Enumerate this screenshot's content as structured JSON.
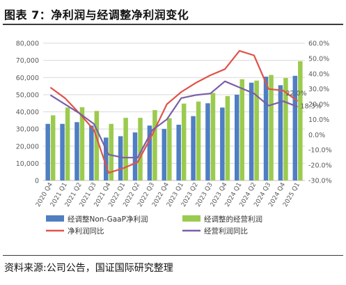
{
  "figure": {
    "title": "图表 7：净利润与经调整净利润变化",
    "source": "资料来源:公司公告，国证国际研究整理"
  },
  "colors": {
    "bar_nongaap": "#4f7ec2",
    "bar_adjop": "#9bcb4e",
    "line_net": "#e0524a",
    "line_op": "#7a5ea8",
    "grid": "#d9d9d9",
    "axis_text": "#595959"
  },
  "chart_data": {
    "type": "bar+line",
    "categories": [
      "2020 Q4",
      "2021 Q1",
      "2021 Q2",
      "2021 Q3",
      "2021 Q4",
      "2022 Q1",
      "2022 Q2",
      "2022 Q3",
      "2022 Q4",
      "2023 Q1",
      "2023 Q2",
      "2023 Q3",
      "2023 Q4",
      "2024 Q1",
      "2024 Q2",
      "2024 Q3",
      "2024 Q4",
      "2025 Q1"
    ],
    "left_axis": {
      "min": 0,
      "max": 80000,
      "ticks": [
        "0",
        "10,000",
        "20,000",
        "30,000",
        "40,000",
        "50,000",
        "60,000",
        "70,000",
        "80,000"
      ]
    },
    "right_axis": {
      "min": -30,
      "max": 60,
      "ticks": [
        "-30.0%",
        "-20.0%",
        "-10.0%",
        "0.0%",
        "10.0%",
        "20.0%",
        "30.0%",
        "40.0%",
        "50.0%",
        "60.0%"
      ]
    },
    "grid": true,
    "legend_position": "bottom",
    "series": [
      {
        "name": "经调整Non-GaaP净利润",
        "kind": "bar",
        "axis": "left",
        "values": [
          33000,
          33000,
          34000,
          32000,
          25000,
          25800,
          28000,
          32000,
          30000,
          32500,
          37500,
          45000,
          42500,
          50000,
          57000,
          60500,
          55500,
          61000
        ]
      },
      {
        "name": "经调整的经营利润",
        "kind": "bar",
        "axis": "left",
        "values": [
          38000,
          42500,
          42700,
          40500,
          33000,
          36500,
          36500,
          41000,
          36300,
          44800,
          46000,
          51000,
          49200,
          59000,
          58200,
          61500,
          59700,
          69500
        ]
      },
      {
        "name": "净利润同比",
        "kind": "line",
        "axis": "right",
        "values": [
          31,
          24,
          14,
          3,
          -25,
          -22,
          -18,
          0,
          20,
          28,
          34,
          39,
          43,
          55,
          52,
          30,
          29,
          22.0
        ]
      },
      {
        "name": "经营利润同比",
        "kind": "line",
        "axis": "right",
        "values": [
          26,
          20,
          14,
          7,
          -13,
          -15,
          -15,
          3,
          10,
          24,
          26,
          27,
          35,
          31,
          27,
          19,
          22,
          18.3
        ]
      }
    ],
    "annotations": [
      "22.0%",
      "18.3%"
    ]
  }
}
